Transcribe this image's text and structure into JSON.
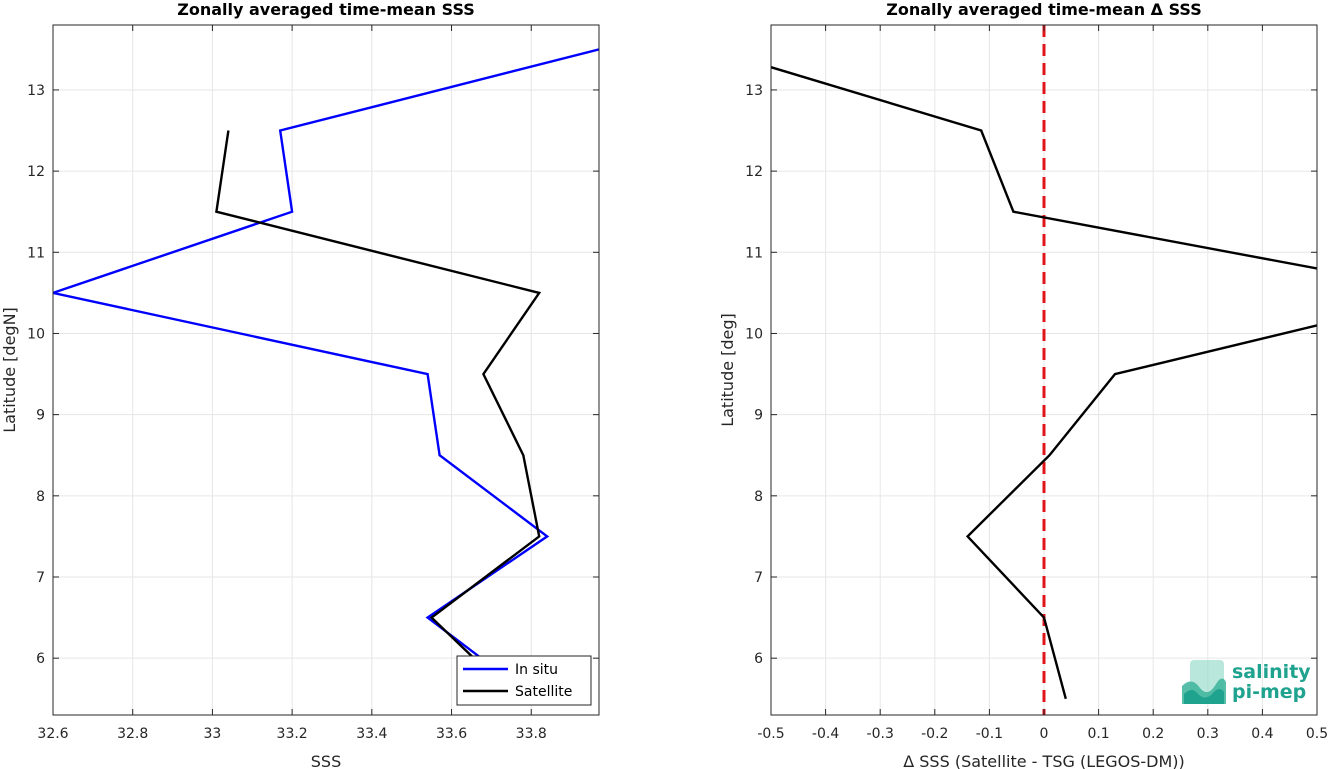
{
  "chart_data": [
    {
      "type": "line",
      "title": "Zonally averaged time-mean SSS",
      "xlabel": "SSS",
      "ylabel": "Latitude [degN]",
      "xlim": [
        32.6,
        33.97
      ],
      "ylim": [
        5.3,
        13.8
      ],
      "xticks": [
        "32.6",
        "32.8",
        "33",
        "33.2",
        "33.4",
        "33.6",
        "33.8"
      ],
      "yticks": [
        "6",
        "7",
        "8",
        "9",
        "10",
        "11",
        "12",
        "13"
      ],
      "grid": true,
      "legend_position": "bottom-right",
      "series": [
        {
          "name": "In situ",
          "color": "#0000ff",
          "x": [
            33.68,
            33.54,
            33.84,
            33.57,
            33.54,
            32.6,
            33.2,
            33.17,
            33.97
          ],
          "y": [
            5.98,
            6.5,
            7.5,
            8.5,
            9.5,
            10.5,
            11.5,
            12.5,
            13.5
          ]
        },
        {
          "name": "Satellite",
          "color": "#000000",
          "x": [
            33.66,
            33.55,
            33.82,
            33.78,
            33.68,
            33.82,
            33.01,
            33.04
          ],
          "y": [
            5.98,
            6.5,
            7.5,
            8.5,
            9.5,
            10.5,
            11.5,
            12.5
          ]
        }
      ]
    },
    {
      "type": "line",
      "title": "Zonally averaged time-mean Δ SSS",
      "xlabel": "Δ SSS (Satellite - TSG (LEGOS-DM))",
      "ylabel": "Latitude [deg]",
      "xlim": [
        -0.5,
        0.5
      ],
      "ylim": [
        5.3,
        13.8
      ],
      "xticks": [
        "-0.5",
        "-0.4",
        "-0.3",
        "-0.2",
        "-0.1",
        "0",
        "0.1",
        "0.2",
        "0.3",
        "0.4",
        "0.5"
      ],
      "yticks": [
        "6",
        "7",
        "8",
        "9",
        "10",
        "11",
        "12",
        "13"
      ],
      "grid": true,
      "reference_line": {
        "x": 0,
        "color": "#e0141b",
        "style": "dashed"
      },
      "series": [
        {
          "color": "#000000",
          "x": [
            0.04,
            0.0,
            -0.14,
            0.01,
            0.13,
            0.5
          ],
          "y": [
            5.5,
            6.5,
            7.5,
            8.5,
            9.5,
            10.1
          ]
        },
        {
          "color": "#000000",
          "x": [
            0.5,
            -0.056,
            -0.115,
            -0.5
          ],
          "y": [
            10.8,
            11.5,
            12.5,
            13.28
          ]
        }
      ]
    }
  ],
  "logo": {
    "line1": "salinity",
    "line2": "pi-mep"
  }
}
